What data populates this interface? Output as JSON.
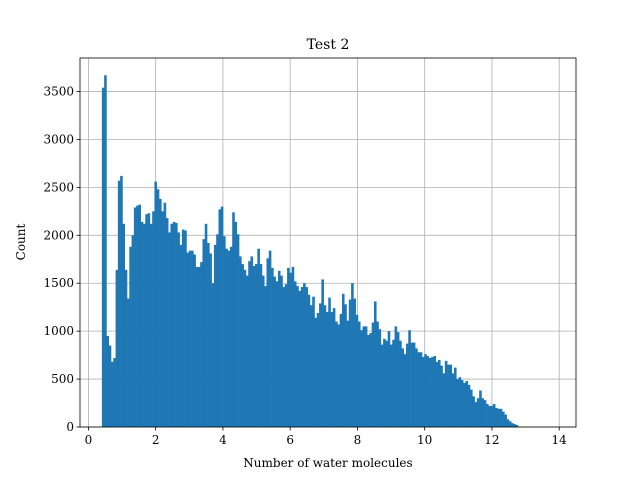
{
  "chart_data": {
    "type": "bar",
    "title": "Test 2",
    "xlabel": "Number of water molecules",
    "ylabel": "Count",
    "xlim": [
      -0.25,
      14.5
    ],
    "ylim": [
      0,
      3850
    ],
    "grid": true,
    "bar_color": "#1f77b4",
    "grid_color": "#b0b0b0",
    "xticks": [
      0,
      2,
      4,
      6,
      8,
      10,
      12,
      14
    ],
    "yticks": [
      0,
      500,
      1000,
      1500,
      2000,
      2500,
      3000,
      3500
    ],
    "bin_start": 0.4,
    "bin_width": 0.068,
    "values": [
      3540,
      3670,
      950,
      850,
      680,
      720,
      1640,
      2570,
      2620,
      2120,
      1640,
      1340,
      1880,
      2000,
      2290,
      2310,
      2320,
      2140,
      2120,
      2220,
      2230,
      2120,
      2250,
      2560,
      2480,
      2380,
      2250,
      2340,
      2180,
      2030,
      2120,
      2140,
      2130,
      2030,
      1900,
      2060,
      2050,
      1820,
      1840,
      1840,
      1800,
      1670,
      1670,
      1720,
      1960,
      2120,
      1920,
      1810,
      1500,
      1900,
      2010,
      2270,
      2300,
      1990,
      1860,
      1840,
      1880,
      2240,
      2140,
      2010,
      1780,
      1700,
      1640,
      1580,
      1730,
      1780,
      1680,
      1700,
      1860,
      1700,
      1580,
      1470,
      1760,
      1840,
      1660,
      1570,
      1520,
      1630,
      1580,
      1460,
      1490,
      1660,
      1610,
      1670,
      1520,
      1470,
      1420,
      1460,
      1500,
      1460,
      1380,
      1270,
      1360,
      1140,
      1190,
      1290,
      1540,
      1270,
      1200,
      1350,
      1200,
      1240,
      1100,
      1070,
      1180,
      1390,
      1280,
      1110,
      1330,
      1500,
      1340,
      1170,
      1100,
      1010,
      1050,
      1050,
      960,
      980,
      1090,
      1310,
      1100,
      1020,
      860,
      920,
      900,
      1000,
      860,
      910,
      1050,
      990,
      900,
      820,
      760,
      870,
      1010,
      880,
      880,
      820,
      780,
      780,
      730,
      760,
      740,
      720,
      730,
      740,
      680,
      700,
      640,
      560,
      690,
      650,
      650,
      560,
      620,
      500,
      520,
      490,
      460,
      480,
      440,
      390,
      320,
      260,
      300,
      380,
      300,
      280,
      240,
      220,
      220,
      240,
      200,
      190,
      190,
      160,
      130,
      80,
      60,
      40,
      30,
      20
    ]
  }
}
